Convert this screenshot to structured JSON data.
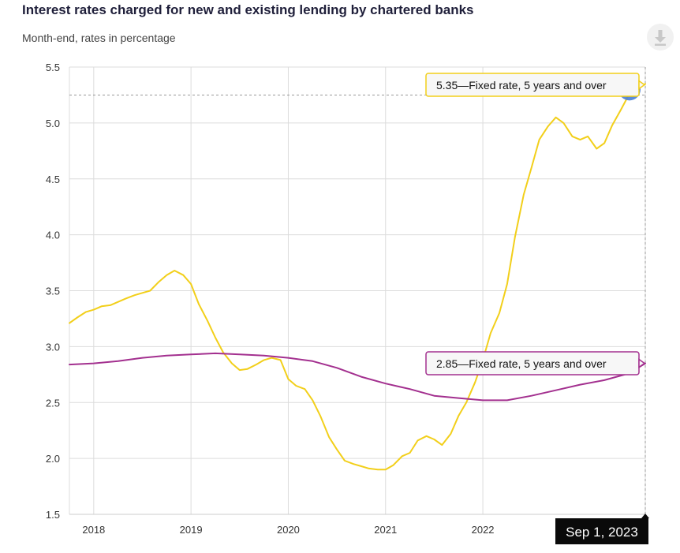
{
  "header": {
    "title": "Interest rates charged for new and existing lending by chartered banks",
    "subtitle": "Month-end, rates in percentage",
    "download_icon": "download-icon"
  },
  "chart_data": {
    "type": "line",
    "title": "Interest rates charged for new and existing lending by chartered banks",
    "subtitle": "Month-end, rates in percentage",
    "ylim": [
      1.5,
      5.5
    ],
    "y_ticks": [
      "1.5",
      "2.0",
      "2.5",
      "3.0",
      "3.5",
      "4.0",
      "4.5",
      "5.0",
      "5.5"
    ],
    "x_range": [
      2017.75,
      2023.67
    ],
    "x_ticks": [
      "2018",
      "2019",
      "2020",
      "2021",
      "2022"
    ],
    "grid": true,
    "colors": {
      "new_lending": "#f2cf1a",
      "existing_lending": "#a3308f",
      "marker": "#4a7fd6",
      "tooltip_bg": "#0a0a0a"
    },
    "series": [
      {
        "key": "new_lending",
        "x": [
          2017.75,
          2017.83,
          2017.92,
          2018.0,
          2018.08,
          2018.17,
          2018.25,
          2018.33,
          2018.42,
          2018.5,
          2018.58,
          2018.67,
          2018.75,
          2018.83,
          2018.92,
          2019.0,
          2019.08,
          2019.17,
          2019.25,
          2019.33,
          2019.42,
          2019.5,
          2019.58,
          2019.67,
          2019.75,
          2019.83,
          2019.92,
          2020.0,
          2020.08,
          2020.17,
          2020.25,
          2020.33,
          2020.42,
          2020.5,
          2020.58,
          2020.67,
          2020.75,
          2020.83,
          2020.92,
          2021.0,
          2021.08,
          2021.17,
          2021.25,
          2021.33,
          2021.42,
          2021.5,
          2021.58,
          2021.67,
          2021.75,
          2021.83,
          2021.92,
          2022.0,
          2022.08,
          2022.17,
          2022.25,
          2022.33,
          2022.42,
          2022.5,
          2022.58,
          2022.67,
          2022.75,
          2022.83,
          2022.92,
          2023.0,
          2023.08,
          2023.17,
          2023.25,
          2023.33,
          2023.42,
          2023.5,
          2023.58,
          2023.67
        ],
        "values": [
          3.21,
          3.26,
          3.31,
          3.33,
          3.36,
          3.37,
          3.4,
          3.43,
          3.46,
          3.48,
          3.5,
          3.58,
          3.64,
          3.68,
          3.64,
          3.56,
          3.38,
          3.23,
          3.08,
          2.95,
          2.85,
          2.79,
          2.8,
          2.84,
          2.88,
          2.9,
          2.88,
          2.71,
          2.65,
          2.62,
          2.52,
          2.38,
          2.19,
          2.08,
          1.98,
          1.95,
          1.93,
          1.91,
          1.9,
          1.9,
          1.94,
          2.02,
          2.05,
          2.16,
          2.2,
          2.17,
          2.12,
          2.22,
          2.38,
          2.5,
          2.68,
          2.88,
          3.12,
          3.3,
          3.56,
          3.98,
          4.36,
          4.6,
          4.85,
          4.97,
          5.05,
          5.0,
          4.88,
          4.85,
          4.88,
          4.77,
          4.82,
          4.98,
          5.12,
          5.25,
          5.3,
          5.35
        ]
      },
      {
        "key": "existing_lending",
        "x": [
          2017.75,
          2018.0,
          2018.25,
          2018.5,
          2018.75,
          2019.0,
          2019.25,
          2019.5,
          2019.75,
          2020.0,
          2020.25,
          2020.5,
          2020.75,
          2021.0,
          2021.25,
          2021.5,
          2021.75,
          2022.0,
          2022.25,
          2022.5,
          2022.75,
          2023.0,
          2023.25,
          2023.5,
          2023.67
        ],
        "values": [
          2.84,
          2.85,
          2.87,
          2.9,
          2.92,
          2.93,
          2.94,
          2.93,
          2.92,
          2.9,
          2.87,
          2.81,
          2.73,
          2.67,
          2.62,
          2.56,
          2.54,
          2.52,
          2.52,
          2.56,
          2.61,
          2.66,
          2.7,
          2.76,
          2.85
        ]
      }
    ],
    "tooltips": [
      {
        "text": "5.35—Fixed rate, 5 years and over",
        "series": "new_lending",
        "value": 5.35
      },
      {
        "text": "2.85—Fixed rate, 5 years and over",
        "series": "existing_lending",
        "value": 2.85
      }
    ],
    "crosshair_label": "Sep 1, 2023",
    "crosshair_x": 2023.67,
    "crosshair_y": 5.25
  }
}
